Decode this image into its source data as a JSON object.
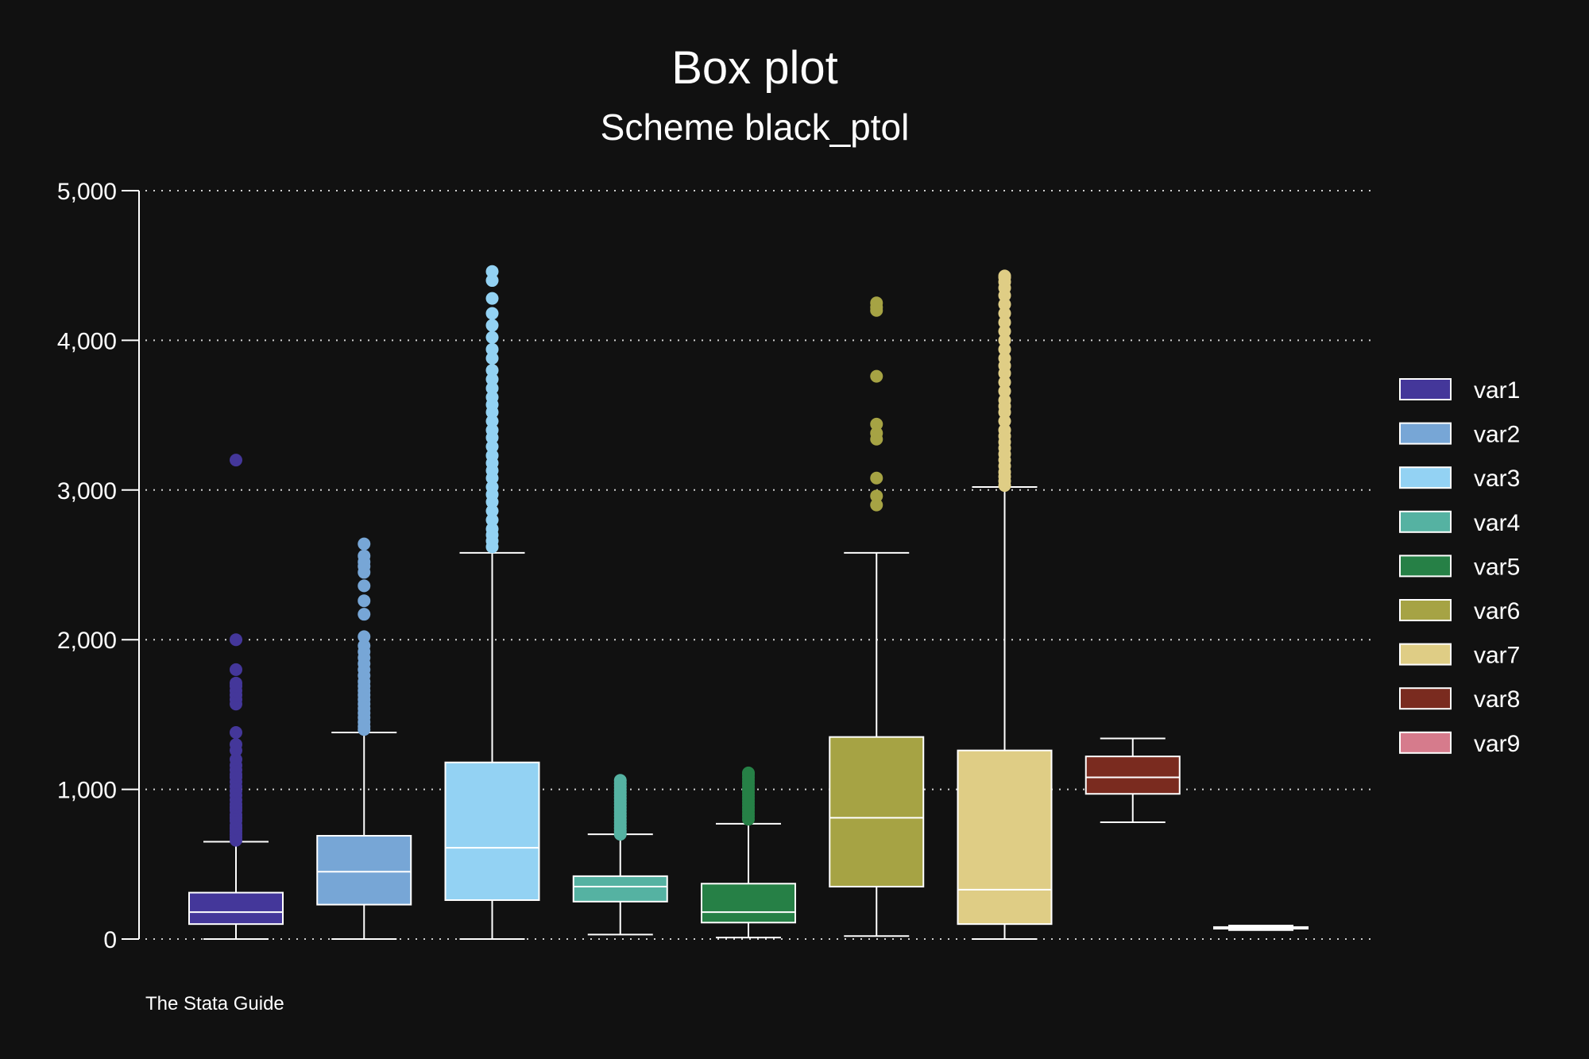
{
  "chart_data": {
    "type": "box",
    "title": "Box plot",
    "subtitle": "Scheme black_ptol",
    "note": "The Stata Guide",
    "ylim": [
      0,
      5000
    ],
    "yticks": [
      0,
      1000,
      2000,
      3000,
      4000,
      5000
    ],
    "ytick_labels": [
      "0",
      "1,000",
      "2,000",
      "3,000",
      "4,000",
      "5,000"
    ],
    "grid": true,
    "legend_position": "right",
    "series": [
      {
        "name": "var1",
        "color": "#44379a",
        "whisker_low": 0,
        "q1": 100,
        "median": 180,
        "q3": 310,
        "whisker_high": 650,
        "outliers": [
          660,
          680,
          700,
          720,
          740,
          760,
          790,
          810,
          830,
          860,
          880,
          900,
          930,
          960,
          990,
          1020,
          1050,
          1080,
          1100,
          1130,
          1160,
          1200,
          1260,
          1300,
          1380,
          1570,
          1600,
          1630,
          1660,
          1690,
          1710,
          1800,
          2000,
          3200
        ]
      },
      {
        "name": "var2",
        "color": "#77a6d6",
        "whisker_low": 0,
        "q1": 230,
        "median": 450,
        "q3": 690,
        "whisker_high": 1380,
        "outliers": [
          1400,
          1420,
          1450,
          1480,
          1510,
          1540,
          1570,
          1600,
          1630,
          1660,
          1690,
          1720,
          1760,
          1800,
          1840,
          1880,
          1920,
          1960,
          2020,
          2170,
          2260,
          2360,
          2450,
          2490,
          2520,
          2560,
          2640
        ]
      },
      {
        "name": "var3",
        "color": "#93d2f3",
        "whisker_low": 0,
        "q1": 260,
        "median": 610,
        "q3": 1180,
        "whisker_high": 2580,
        "outliers": [
          2620,
          2660,
          2700,
          2740,
          2800,
          2860,
          2920,
          2970,
          3020,
          3080,
          3130,
          3180,
          3230,
          3290,
          3350,
          3400,
          3460,
          3520,
          3570,
          3620,
          3680,
          3740,
          3800,
          3880,
          3940,
          4020,
          4100,
          4180,
          4280,
          4400,
          4460
        ]
      },
      {
        "name": "var4",
        "color": "#55b2a2",
        "whisker_low": 30,
        "q1": 250,
        "median": 350,
        "q3": 420,
        "whisker_high": 700,
        "outliers": [
          700,
          720,
          740,
          760,
          780,
          800,
          820,
          840,
          860,
          880,
          900,
          920,
          940,
          960,
          980,
          1000,
          1020,
          1040,
          1060
        ]
      },
      {
        "name": "var5",
        "color": "#268046",
        "whisker_low": 10,
        "q1": 110,
        "median": 180,
        "q3": 370,
        "whisker_high": 770,
        "outliers": [
          800,
          820,
          840,
          860,
          880,
          900,
          920,
          940,
          960,
          980,
          1000,
          1020,
          1040,
          1060,
          1080,
          1100,
          1110
        ]
      },
      {
        "name": "var6",
        "color": "#a6a344",
        "whisker_low": 20,
        "q1": 350,
        "median": 810,
        "q3": 1350,
        "whisker_high": 2580,
        "outliers": [
          2900,
          2960,
          3080,
          3340,
          3380,
          3440,
          3760,
          4200,
          4220,
          4250
        ]
      },
      {
        "name": "var7",
        "color": "#dfcd85",
        "whisker_low": 0,
        "q1": 100,
        "median": 330,
        "q3": 1260,
        "whisker_high": 3020,
        "outliers": [
          3030,
          3060,
          3090,
          3120,
          3160,
          3200,
          3240,
          3280,
          3320,
          3360,
          3400,
          3460,
          3520,
          3560,
          3600,
          3660,
          3720,
          3780,
          3830,
          3880,
          3940,
          4000,
          4060,
          4120,
          4180,
          4240,
          4300,
          4350,
          4390,
          4420,
          4430
        ]
      },
      {
        "name": "var8",
        "color": "#7a2b1f",
        "whisker_low": 780,
        "q1": 970,
        "median": 1080,
        "q3": 1220,
        "whisker_high": 1340,
        "outliers": []
      },
      {
        "name": "var9",
        "color": "#d67b8c",
        "whisker_low": 60,
        "q1": 70,
        "median": 75,
        "q3": 80,
        "whisker_high": 90,
        "outliers": []
      }
    ]
  }
}
